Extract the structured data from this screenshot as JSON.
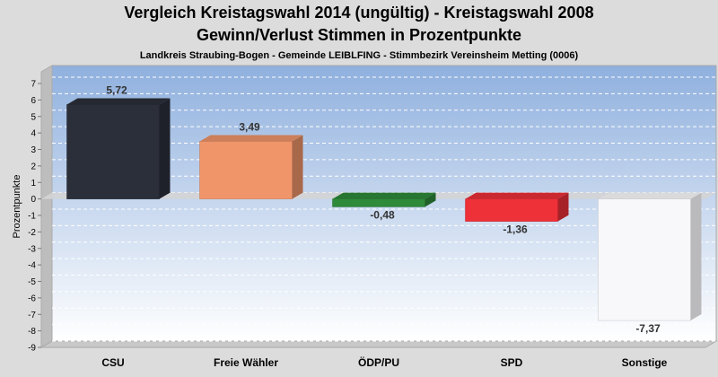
{
  "chart_data": {
    "type": "bar",
    "title": "Vergleich Kreistagswahl 2014 (ungültig) - Kreistagswahl 2008",
    "subtitle": "Gewinn/Verlust Stimmen in Prozentpunkte",
    "subsubtitle": "Landkreis Straubing-Bogen - Gemeinde LEIBLFING - Stimmbezirk Vereinsheim Metting (0006)",
    "ylabel": "Prozentpunkte",
    "xlabel": "",
    "ylim": [
      -9,
      7
    ],
    "yticks": [
      7,
      6,
      5,
      4,
      3,
      2,
      1,
      0,
      -1,
      -2,
      -3,
      -4,
      -5,
      -6,
      -7,
      -8,
      -9
    ],
    "categories": [
      "CSU",
      "Freie Wähler",
      "ÖDP/PU",
      "SPD",
      "Sonstige"
    ],
    "values": [
      5.72,
      3.49,
      -0.48,
      -1.36,
      -7.37
    ],
    "value_labels": [
      "5,72",
      "3,49",
      "-0,48",
      "-1,36",
      "-7,37"
    ],
    "colors": [
      "#2b2f3a",
      "#f0956a",
      "#2e8b3a",
      "#ee3038",
      "#f8f8fa"
    ],
    "grid": true,
    "legend": "none"
  }
}
